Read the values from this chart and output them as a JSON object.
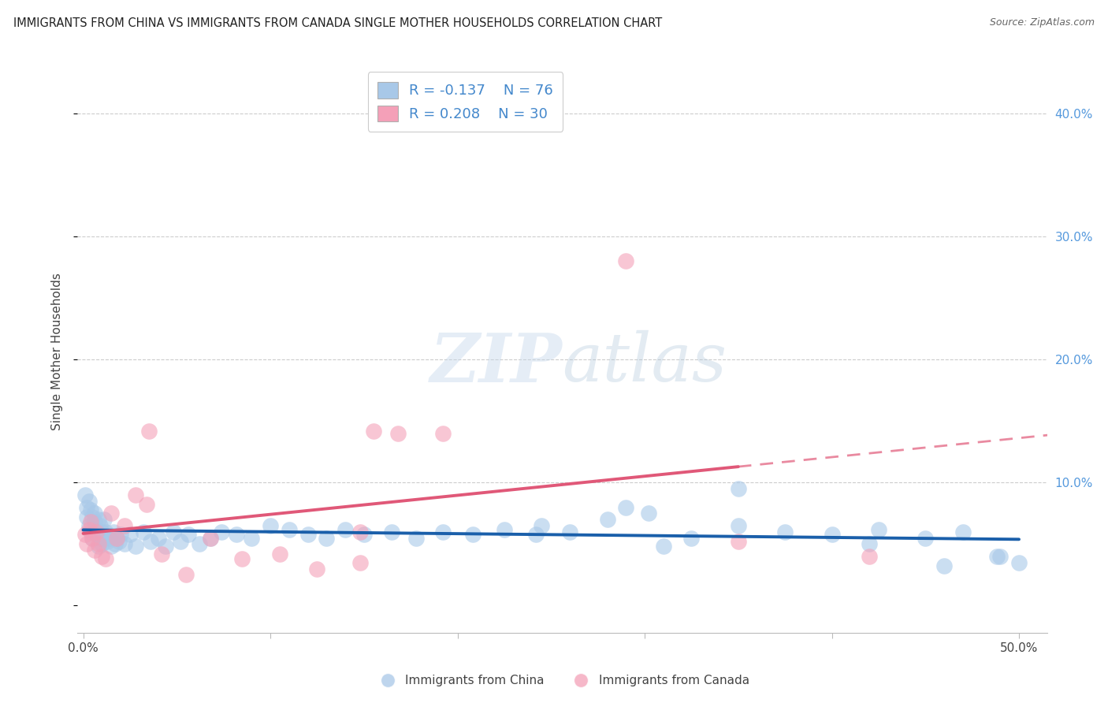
{
  "title": "IMMIGRANTS FROM CHINA VS IMMIGRANTS FROM CANADA SINGLE MOTHER HOUSEHOLDS CORRELATION CHART",
  "source": "Source: ZipAtlas.com",
  "ylabel": "Single Mother Households",
  "ytick_vals": [
    0.0,
    0.1,
    0.2,
    0.3,
    0.4
  ],
  "ytick_labels": [
    "",
    "10.0%",
    "20.0%",
    "30.0%",
    "40.0%"
  ],
  "xtick_vals": [
    0.0,
    0.1,
    0.2,
    0.3,
    0.4,
    0.5
  ],
  "xtick_labels": [
    "0.0%",
    "",
    "",
    "",
    "",
    "50.0%"
  ],
  "xlim": [
    -0.003,
    0.515
  ],
  "ylim": [
    -0.022,
    0.435
  ],
  "legend_china_R": "-0.137",
  "legend_china_N": "76",
  "legend_canada_R": "0.208",
  "legend_canada_N": "30",
  "china_color": "#a8c8e8",
  "canada_color": "#f4a0b8",
  "china_line_color": "#1a5faa",
  "canada_line_color": "#e05878",
  "background_color": "#ffffff",
  "grid_color": "#cccccc",
  "china_x": [
    0.001,
    0.002,
    0.002,
    0.003,
    0.003,
    0.004,
    0.004,
    0.005,
    0.005,
    0.006,
    0.006,
    0.007,
    0.007,
    0.008,
    0.008,
    0.009,
    0.009,
    0.01,
    0.01,
    0.011,
    0.011,
    0.012,
    0.013,
    0.014,
    0.015,
    0.016,
    0.017,
    0.018,
    0.019,
    0.02,
    0.022,
    0.025,
    0.028,
    0.032,
    0.036,
    0.04,
    0.044,
    0.048,
    0.052,
    0.056,
    0.062,
    0.068,
    0.074,
    0.082,
    0.09,
    0.1,
    0.11,
    0.12,
    0.13,
    0.14,
    0.15,
    0.165,
    0.178,
    0.192,
    0.208,
    0.225,
    0.242,
    0.26,
    0.28,
    0.302,
    0.325,
    0.35,
    0.375,
    0.4,
    0.425,
    0.45,
    0.47,
    0.49,
    0.5,
    0.35,
    0.29,
    0.42,
    0.46,
    0.488,
    0.245,
    0.31
  ],
  "china_y": [
    0.09,
    0.08,
    0.072,
    0.085,
    0.065,
    0.078,
    0.06,
    0.072,
    0.055,
    0.068,
    0.075,
    0.062,
    0.058,
    0.07,
    0.048,
    0.065,
    0.055,
    0.06,
    0.05,
    0.07,
    0.055,
    0.06,
    0.052,
    0.055,
    0.048,
    0.06,
    0.05,
    0.055,
    0.052,
    0.058,
    0.05,
    0.058,
    0.048,
    0.06,
    0.052,
    0.055,
    0.048,
    0.06,
    0.052,
    0.058,
    0.05,
    0.055,
    0.06,
    0.058,
    0.055,
    0.065,
    0.062,
    0.058,
    0.055,
    0.062,
    0.058,
    0.06,
    0.055,
    0.06,
    0.058,
    0.062,
    0.058,
    0.06,
    0.07,
    0.075,
    0.055,
    0.065,
    0.06,
    0.058,
    0.062,
    0.055,
    0.06,
    0.04,
    0.035,
    0.095,
    0.08,
    0.05,
    0.032,
    0.04,
    0.065,
    0.048
  ],
  "canada_x": [
    0.001,
    0.002,
    0.003,
    0.004,
    0.005,
    0.006,
    0.007,
    0.008,
    0.01,
    0.012,
    0.015,
    0.018,
    0.022,
    0.028,
    0.034,
    0.042,
    0.055,
    0.068,
    0.085,
    0.105,
    0.125,
    0.148,
    0.168,
    0.192,
    0.035,
    0.155,
    0.148,
    0.29,
    0.35,
    0.42
  ],
  "canada_y": [
    0.058,
    0.05,
    0.062,
    0.068,
    0.055,
    0.045,
    0.06,
    0.05,
    0.04,
    0.038,
    0.075,
    0.055,
    0.065,
    0.09,
    0.082,
    0.042,
    0.025,
    0.055,
    0.038,
    0.042,
    0.03,
    0.06,
    0.14,
    0.14,
    0.142,
    0.142,
    0.035,
    0.28,
    0.052,
    0.04
  ]
}
